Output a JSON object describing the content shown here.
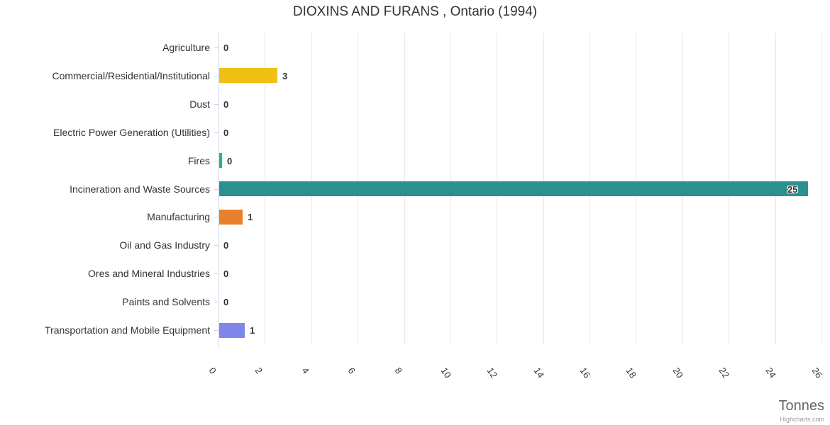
{
  "chart_data": {
    "type": "bar",
    "orientation": "horizontal",
    "title": "DIOXINS AND FURANS , Ontario (1994)",
    "categories": [
      "Agriculture",
      "Commercial/Residential/Institutional",
      "Dust",
      "Electric Power Generation (Utilities)",
      "Fires",
      "Incineration and Waste Sources",
      "Manufacturing",
      "Oil and Gas Industry",
      "Ores and Mineral Industries",
      "Paints and Solvents",
      "Transportation and Mobile Equipment"
    ],
    "values": [
      0,
      2.5,
      0,
      0,
      0.12,
      25.4,
      1,
      0,
      0,
      0,
      1.1
    ],
    "value_labels": [
      "0",
      "3",
      "0",
      "0",
      "0",
      "25",
      "1",
      "0",
      "0",
      "0",
      "1"
    ],
    "bar_colors": [
      "#7cb5ec",
      "#f0c114",
      "#7cb5ec",
      "#7cb5ec",
      "#21b585",
      "#2b908f",
      "#e8802b",
      "#7cb5ec",
      "#7cb5ec",
      "#7cb5ec",
      "#8085e9"
    ],
    "xlabel": "Tonnes",
    "xlim": [
      0,
      26
    ],
    "x_ticks": [
      0,
      2,
      4,
      6,
      8,
      10,
      12,
      14,
      16,
      18,
      20,
      22,
      24,
      26
    ],
    "grid": true,
    "legend": false
  },
  "credits": "Highcharts.com",
  "colors": {
    "axis_line": "#ccd6eb",
    "grid_line": "#e6e6e6",
    "title_text": "#333333",
    "category_text": "#333333",
    "tick_text": "#333333",
    "axis_title_text": "#666666",
    "credits_text": "#999999",
    "data_label_text": "#333333"
  }
}
